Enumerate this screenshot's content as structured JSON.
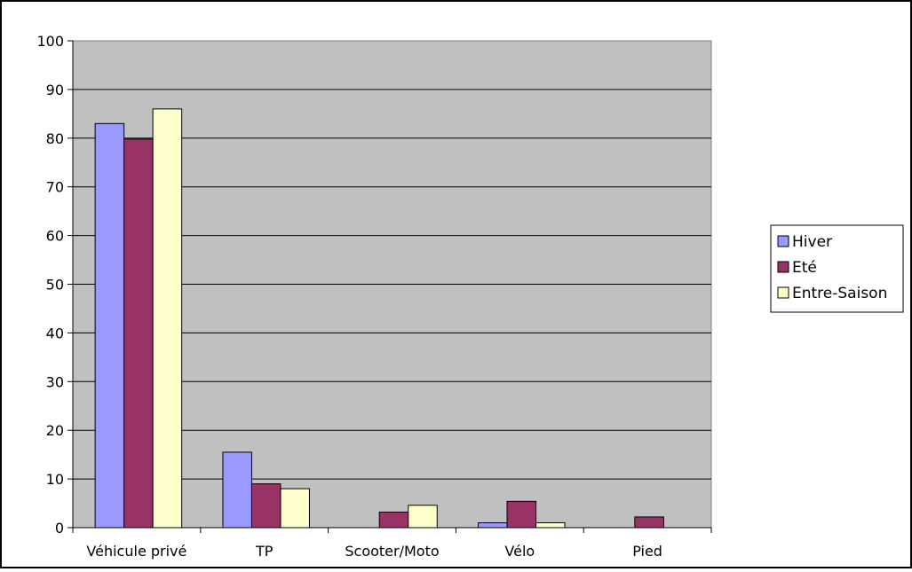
{
  "chart_data": {
    "type": "bar",
    "title": "",
    "xlabel": "",
    "ylabel": "",
    "categories": [
      "Véhicule privé",
      "TP",
      "Scooter/Moto",
      "Vélo",
      "Pied"
    ],
    "series": [
      {
        "name": "Hiver",
        "color": "#9999ff",
        "values": [
          83,
          15.5,
          0,
          1,
          0
        ]
      },
      {
        "name": "Eté",
        "color": "#993366",
        "values": [
          79.8,
          9,
          3.2,
          5.4,
          2.2
        ]
      },
      {
        "name": "Entre-Saison",
        "color": "#ffffcc",
        "values": [
          86,
          8,
          4.6,
          1,
          0
        ]
      }
    ],
    "ylim": [
      0,
      100
    ],
    "yticks": [
      "0",
      "10",
      "20",
      "30",
      "40",
      "50",
      "60",
      "70",
      "80",
      "90",
      "100"
    ],
    "grid": true,
    "plot_background": "#c0c0c0",
    "legend_position": "right"
  }
}
